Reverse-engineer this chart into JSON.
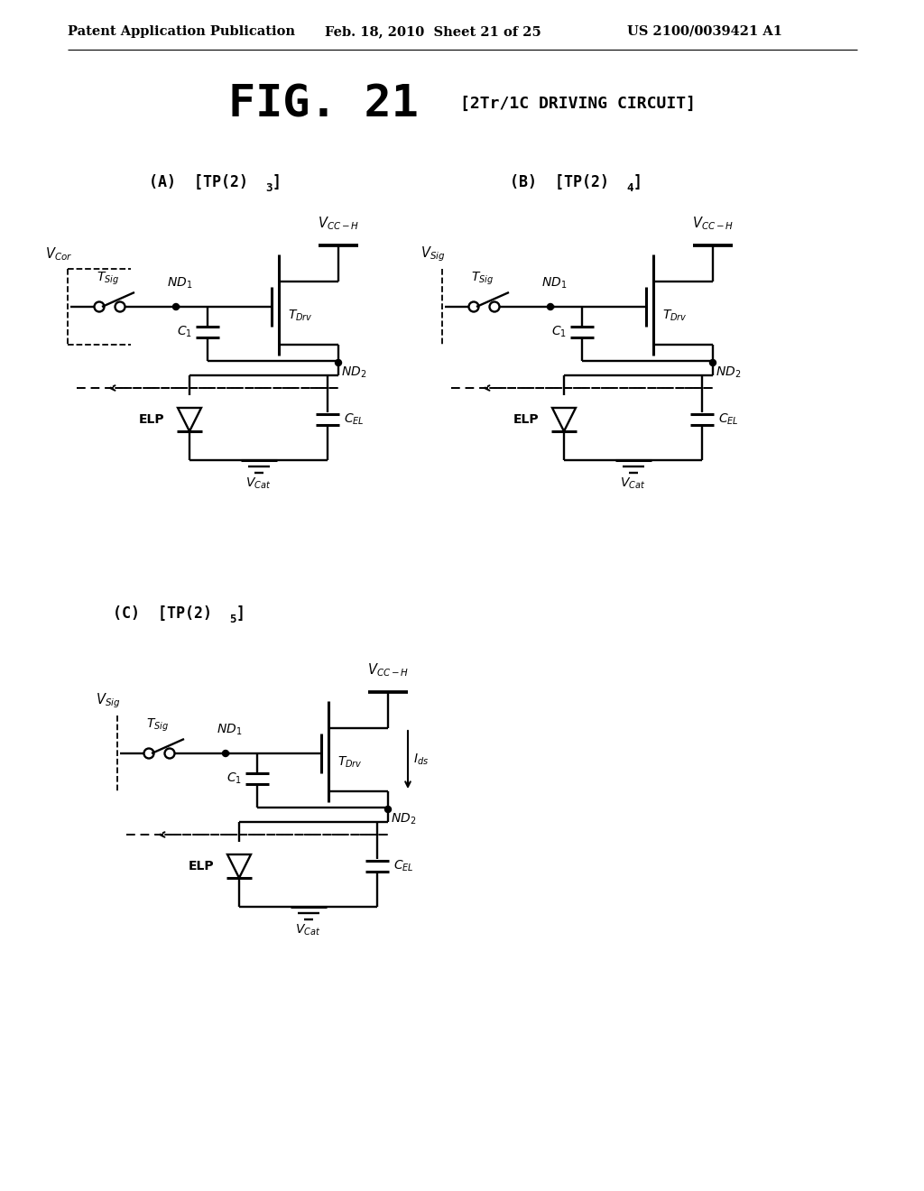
{
  "header_left": "Patent Application Publication",
  "header_center": "Feb. 18, 2010  Sheet 21 of 25",
  "header_right": "US 2100/0039421 A1",
  "fig_title": "FIG. 21",
  "fig_subtitle": "[2Tr/1C DRIVING CIRCUIT]",
  "label_A": "(A)  [TP(2)",
  "label_A_sub": "3",
  "label_B": "(B)  [TP(2)",
  "label_B_sub": "4",
  "label_C": "(C)  [TP(2)",
  "label_C_sub": "5",
  "bg": "#ffffff",
  "lc": "#000000"
}
